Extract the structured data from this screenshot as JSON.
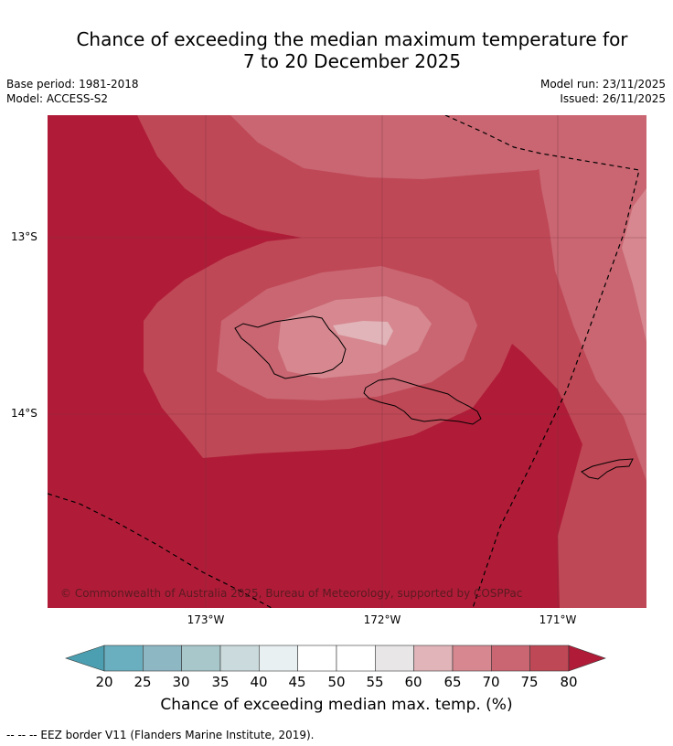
{
  "header": {
    "title_line1": "Chance of exceeding the median maximum temperature for",
    "title_line2": "7 to 20 December 2025",
    "base_period": "Base period: 1981-2018",
    "model": "Model: ACCESS-S2",
    "model_run": "Model run: 23/11/2025",
    "issued": "Issued: 26/11/2025"
  },
  "map": {
    "lat_labels": [
      "13°S",
      "14°S"
    ],
    "lon_labels": [
      "173°W",
      "172°W",
      "171°W"
    ],
    "copyright": "© Commonwealth of Australia 2025, Bureau of Meteorology, supported by COSPPac"
  },
  "colorbar": {
    "ticks": [
      "20",
      "25",
      "30",
      "35",
      "40",
      "45",
      "50",
      "55",
      "60",
      "65",
      "70",
      "75",
      "80"
    ],
    "label": "Chance of exceeding median max. temp. (%)",
    "colors": [
      "#6aafbf",
      "#8db7c3",
      "#a8c7cb",
      "#cbdbdd",
      "#e8f0f1",
      "#ffffff",
      "#ffffff",
      "#e8e6e6",
      "#e0b4b8",
      "#d6878f",
      "#c96672",
      "#bf4856"
    ],
    "under_color": "#4b9fb0",
    "over_color": "#b01c38"
  },
  "footer": {
    "legend_note": "--  --  -- EEZ border V11 (Flanders Marine Institute, 2019)."
  }
}
